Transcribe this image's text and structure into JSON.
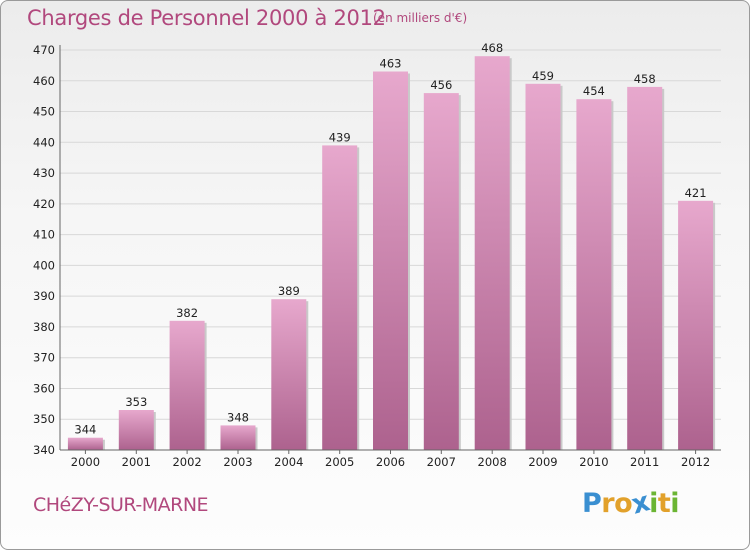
{
  "header": {
    "title": "Charges de Personnel 2000 à 2012",
    "subtitle": "(en milliers d'€)"
  },
  "footer": {
    "commune": "CHéZY-SUR-MARNE",
    "logo_letters": [
      "P",
      "r",
      "o",
      "x",
      "i",
      "t",
      "i"
    ],
    "logo_colors": [
      "#3a8fd1",
      "#e2a12b",
      "#e2a12b",
      "#3a8fd1",
      "#6bb533",
      "#e2a12b",
      "#6bb533"
    ]
  },
  "colors": {
    "bar_top": "#e7a8cd",
    "bar_bottom": "#ad628e",
    "gridline": "#d8d8d8",
    "text_accent": "#b1487d"
  },
  "chart_data": {
    "type": "bar",
    "title": "Charges de Personnel 2000 à 2012",
    "subtitle": "(en milliers d'€)",
    "categories": [
      "2000",
      "2001",
      "2002",
      "2003",
      "2004",
      "2005",
      "2006",
      "2007",
      "2008",
      "2009",
      "2010",
      "2011",
      "2012"
    ],
    "values": [
      344,
      353,
      382,
      348,
      389,
      439,
      463,
      456,
      468,
      459,
      454,
      458,
      421
    ],
    "ylim": [
      340,
      470
    ],
    "yticks": [
      340,
      350,
      360,
      370,
      380,
      390,
      400,
      410,
      420,
      430,
      440,
      450,
      460,
      470
    ],
    "grid": true,
    "data_labels": true
  }
}
